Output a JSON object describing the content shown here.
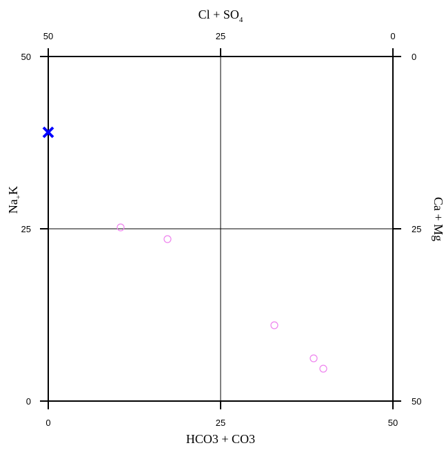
{
  "chart_data": {
    "type": "scatter",
    "title": "",
    "axes": {
      "bottom": {
        "label": "HCO3 + CO3",
        "ticks": [
          "0",
          "25",
          "50"
        ],
        "range": [
          0,
          50
        ]
      },
      "left": {
        "label_main": "Na",
        "label_sub": "+",
        "label_rest": "K",
        "ticks": [
          "0",
          "25",
          "50"
        ],
        "range": [
          0,
          50
        ]
      },
      "top": {
        "label_main": "Cl + SO",
        "label_sub": "4",
        "ticks": [
          "50",
          "25",
          "0"
        ],
        "range": [
          50,
          0
        ]
      },
      "right": {
        "label": "Ca + Mg",
        "ticks": [
          "0",
          "25",
          "50"
        ],
        "range": [
          0,
          50
        ]
      }
    },
    "grid": true,
    "series": [
      {
        "marker": "x",
        "color": "#0000ff",
        "points": [
          [
            0,
            39
          ]
        ]
      },
      {
        "marker": "circle-open",
        "color": "#ee82ee",
        "points": [
          [
            10.5,
            25.2
          ],
          [
            17.3,
            23.5
          ],
          [
            32.8,
            11.0
          ],
          [
            38.5,
            6.2
          ],
          [
            39.9,
            4.7
          ]
        ]
      }
    ]
  }
}
